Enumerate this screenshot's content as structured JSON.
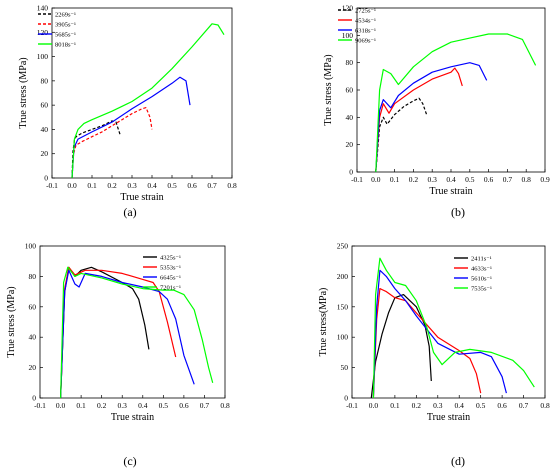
{
  "colors": {
    "s1": "#000000",
    "s2": "#ff0000",
    "s3": "#0000ff",
    "s4": "#00ff00"
  },
  "chart_data": [
    {
      "type": "line",
      "panel_label": "(a)",
      "xlabel": "True strain",
      "ylabel": "True stress (MPa)",
      "xlim": [
        -0.1,
        0.8
      ],
      "ylim": [
        0,
        140
      ],
      "xticks": [
        "-0.1",
        "0.0",
        "0.1",
        "0.2",
        "0.3",
        "0.4",
        "0.5",
        "0.6",
        "0.7",
        "0.8"
      ],
      "yticks": [
        "0",
        "20",
        "40",
        "60",
        "80",
        "100",
        "120",
        "140"
      ],
      "legend_position": "top-left",
      "series": [
        {
          "name": "2269s⁻¹",
          "dashed": true,
          "points": [
            [
              0,
              0
            ],
            [
              0.005,
              22
            ],
            [
              0.012,
              31
            ],
            [
              0.02,
              34
            ],
            [
              0.05,
              37
            ],
            [
              0.1,
              40
            ],
            [
              0.15,
              43
            ],
            [
              0.2,
              47
            ],
            [
              0.22,
              46
            ],
            [
              0.24,
              36
            ]
          ]
        },
        {
          "name": "3905s⁻¹",
          "dashed": true,
          "points": [
            [
              0,
              0
            ],
            [
              0.008,
              20
            ],
            [
              0.02,
              27
            ],
            [
              0.05,
              30
            ],
            [
              0.1,
              34
            ],
            [
              0.15,
              38
            ],
            [
              0.2,
              43
            ],
            [
              0.25,
              48
            ],
            [
              0.3,
              53
            ],
            [
              0.35,
              57
            ],
            [
              0.37,
              58
            ],
            [
              0.39,
              50
            ],
            [
              0.4,
              40
            ]
          ]
        },
        {
          "name": "5685s⁻¹",
          "dashed": false,
          "points": [
            [
              0,
              0
            ],
            [
              0.01,
              25
            ],
            [
              0.03,
              32
            ],
            [
              0.1,
              38
            ],
            [
              0.2,
              46
            ],
            [
              0.3,
              57
            ],
            [
              0.4,
              67
            ],
            [
              0.5,
              78
            ],
            [
              0.54,
              83
            ],
            [
              0.57,
              80
            ],
            [
              0.59,
              60
            ]
          ]
        },
        {
          "name": "8018s⁻¹",
          "dashed": false,
          "points": [
            [
              0,
              0
            ],
            [
              0.012,
              32
            ],
            [
              0.03,
              40
            ],
            [
              0.06,
              45
            ],
            [
              0.1,
              48
            ],
            [
              0.2,
              55
            ],
            [
              0.3,
              63
            ],
            [
              0.4,
              74
            ],
            [
              0.5,
              90
            ],
            [
              0.6,
              108
            ],
            [
              0.7,
              127
            ],
            [
              0.73,
              126
            ],
            [
              0.76,
              118
            ]
          ]
        }
      ]
    },
    {
      "type": "line",
      "panel_label": "(b)",
      "xlabel": "True strain",
      "ylabel": "True stress (MPa)",
      "xlim": [
        -0.1,
        0.9
      ],
      "ylim": [
        0,
        120
      ],
      "xticks": [
        "-0.1",
        "0.0",
        "0.1",
        "0.2",
        "0.3",
        "0.4",
        "0.5",
        "0.6",
        "0.7",
        "0.8",
        "0.9"
      ],
      "yticks": [
        "0",
        "20",
        "40",
        "60",
        "80",
        "100",
        "120"
      ],
      "legend_position": "top-left",
      "series": [
        {
          "name": "2725s⁻¹",
          "dashed": true,
          "points": [
            [
              0,
              0
            ],
            [
              0.02,
              33
            ],
            [
              0.04,
              40
            ],
            [
              0.06,
              35
            ],
            [
              0.1,
              42
            ],
            [
              0.15,
              48
            ],
            [
              0.2,
              52
            ],
            [
              0.23,
              54
            ],
            [
              0.25,
              50
            ],
            [
              0.27,
              42
            ]
          ]
        },
        {
          "name": "4534s⁻¹",
          "dashed": false,
          "points": [
            [
              0,
              0
            ],
            [
              0.02,
              40
            ],
            [
              0.04,
              50
            ],
            [
              0.07,
              43
            ],
            [
              0.1,
              50
            ],
            [
              0.2,
              60
            ],
            [
              0.3,
              68
            ],
            [
              0.4,
              73
            ],
            [
              0.42,
              76
            ],
            [
              0.44,
              72
            ],
            [
              0.46,
              63
            ]
          ]
        },
        {
          "name": "6318s⁻¹",
          "dashed": false,
          "points": [
            [
              0,
              0
            ],
            [
              0.02,
              45
            ],
            [
              0.04,
              53
            ],
            [
              0.08,
              47
            ],
            [
              0.12,
              56
            ],
            [
              0.2,
              65
            ],
            [
              0.3,
              73
            ],
            [
              0.4,
              77
            ],
            [
              0.5,
              80
            ],
            [
              0.55,
              78
            ],
            [
              0.59,
              67
            ]
          ]
        },
        {
          "name": "9069s⁻¹",
          "dashed": false,
          "points": [
            [
              0,
              0
            ],
            [
              0.02,
              60
            ],
            [
              0.04,
              75
            ],
            [
              0.08,
              72
            ],
            [
              0.12,
              64
            ],
            [
              0.2,
              77
            ],
            [
              0.3,
              88
            ],
            [
              0.4,
              95
            ],
            [
              0.5,
              98
            ],
            [
              0.6,
              101
            ],
            [
              0.7,
              101
            ],
            [
              0.78,
              97
            ],
            [
              0.85,
              78
            ]
          ]
        }
      ]
    },
    {
      "type": "line",
      "panel_label": "(c)",
      "xlabel": "True strain",
      "ylabel": "True stress (MPa)",
      "xlim": [
        -0.1,
        0.8
      ],
      "ylim": [
        0,
        100
      ],
      "xticks": [
        "-0.1",
        "0.0",
        "0.1",
        "0.2",
        "0.3",
        "0.4",
        "0.5",
        "0.6",
        "0.7",
        "0.8"
      ],
      "yticks": [
        "0",
        "20",
        "40",
        "60",
        "80",
        "100"
      ],
      "legend_position": "top-right",
      "series": [
        {
          "name": "4325s⁻¹",
          "dashed": false,
          "points": [
            [
              0,
              0
            ],
            [
              0.02,
              70
            ],
            [
              0.04,
              86
            ],
            [
              0.07,
              80
            ],
            [
              0.1,
              84
            ],
            [
              0.15,
              86
            ],
            [
              0.2,
              83
            ],
            [
              0.3,
              76
            ],
            [
              0.35,
              72
            ],
            [
              0.38,
              65
            ],
            [
              0.41,
              48
            ],
            [
              0.43,
              32
            ]
          ]
        },
        {
          "name": "5353s⁻¹",
          "dashed": false,
          "points": [
            [
              0,
              0
            ],
            [
              0.02,
              72
            ],
            [
              0.04,
              86
            ],
            [
              0.07,
              81
            ],
            [
              0.12,
              84
            ],
            [
              0.2,
              84
            ],
            [
              0.3,
              82
            ],
            [
              0.4,
              78
            ],
            [
              0.45,
              76
            ],
            [
              0.48,
              70
            ],
            [
              0.52,
              50
            ],
            [
              0.56,
              27
            ]
          ]
        },
        {
          "name": "6645s⁻¹",
          "dashed": false,
          "points": [
            [
              0,
              0
            ],
            [
              0.02,
              70
            ],
            [
              0.04,
              84
            ],
            [
              0.07,
              75
            ],
            [
              0.09,
              73
            ],
            [
              0.12,
              82
            ],
            [
              0.2,
              80
            ],
            [
              0.3,
              76
            ],
            [
              0.4,
              73
            ],
            [
              0.48,
              70
            ],
            [
              0.52,
              65
            ],
            [
              0.56,
              52
            ],
            [
              0.6,
              28
            ],
            [
              0.65,
              9
            ]
          ]
        },
        {
          "name": "7201s⁻¹",
          "dashed": false,
          "points": [
            [
              0,
              0
            ],
            [
              0.015,
              76
            ],
            [
              0.035,
              86
            ],
            [
              0.07,
              80
            ],
            [
              0.1,
              82
            ],
            [
              0.2,
              79
            ],
            [
              0.3,
              75
            ],
            [
              0.4,
              72
            ],
            [
              0.5,
              71
            ],
            [
              0.55,
              71
            ],
            [
              0.6,
              68
            ],
            [
              0.65,
              58
            ],
            [
              0.69,
              38
            ],
            [
              0.72,
              20
            ],
            [
              0.74,
              10
            ]
          ]
        }
      ]
    },
    {
      "type": "line",
      "panel_label": "(d)",
      "xlabel": "True strain",
      "ylabel": "True stress(MPa)",
      "xlim": [
        -0.1,
        0.8
      ],
      "ylim": [
        0,
        250
      ],
      "xticks": [
        "-0.1",
        "0.0",
        "0.1",
        "0.2",
        "0.3",
        "0.4",
        "0.5",
        "0.6",
        "0.7",
        "0.8"
      ],
      "yticks": [
        "0",
        "50",
        "100",
        "150",
        "200",
        "250"
      ],
      "legend_position": "top-right",
      "series": [
        {
          "name": "2411s⁻¹",
          "dashed": false,
          "points": [
            [
              -0.01,
              0
            ],
            [
              0.01,
              60
            ],
            [
              0.04,
              105
            ],
            [
              0.07,
              140
            ],
            [
              0.1,
              165
            ],
            [
              0.14,
              170
            ],
            [
              0.2,
              150
            ],
            [
              0.24,
              120
            ],
            [
              0.26,
              85
            ],
            [
              0.27,
              28
            ]
          ]
        },
        {
          "name": "4633s⁻¹",
          "dashed": false,
          "points": [
            [
              0,
              0
            ],
            [
              0.015,
              130
            ],
            [
              0.03,
              180
            ],
            [
              0.06,
              175
            ],
            [
              0.1,
              165
            ],
            [
              0.15,
              160
            ],
            [
              0.2,
              140
            ],
            [
              0.3,
              100
            ],
            [
              0.4,
              78
            ],
            [
              0.45,
              65
            ],
            [
              0.48,
              40
            ],
            [
              0.5,
              8
            ]
          ]
        },
        {
          "name": "5610s⁻¹",
          "dashed": false,
          "points": [
            [
              0,
              0
            ],
            [
              0.015,
              150
            ],
            [
              0.03,
              210
            ],
            [
              0.06,
              200
            ],
            [
              0.1,
              180
            ],
            [
              0.15,
              160
            ],
            [
              0.2,
              135
            ],
            [
              0.3,
              90
            ],
            [
              0.4,
              72
            ],
            [
              0.5,
              75
            ],
            [
              0.55,
              68
            ],
            [
              0.6,
              35
            ],
            [
              0.62,
              8
            ]
          ]
        },
        {
          "name": "7535s⁻¹",
          "dashed": false,
          "points": [
            [
              0,
              0
            ],
            [
              0.01,
              170
            ],
            [
              0.03,
              230
            ],
            [
              0.06,
              210
            ],
            [
              0.1,
              190
            ],
            [
              0.15,
              185
            ],
            [
              0.2,
              160
            ],
            [
              0.25,
              115
            ],
            [
              0.28,
              75
            ],
            [
              0.32,
              55
            ],
            [
              0.38,
              75
            ],
            [
              0.45,
              80
            ],
            [
              0.55,
              75
            ],
            [
              0.65,
              62
            ],
            [
              0.7,
              45
            ],
            [
              0.75,
              18
            ]
          ]
        }
      ]
    }
  ]
}
